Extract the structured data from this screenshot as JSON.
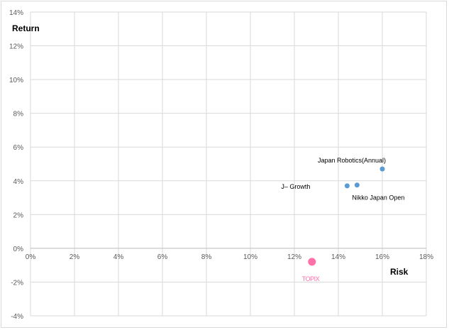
{
  "chart_data": {
    "type": "scatter",
    "xlabel": "Risk",
    "ylabel": "Return",
    "xlim": [
      0,
      18
    ],
    "ylim": [
      -4,
      14
    ],
    "x_ticks": [
      "0%",
      "2%",
      "4%",
      "6%",
      "8%",
      "10%",
      "12%",
      "14%",
      "16%",
      "18%"
    ],
    "y_ticks": [
      "-4%",
      "-2%",
      "0%",
      "2%",
      "4%",
      "6%",
      "8%",
      "10%",
      "12%",
      "14%"
    ],
    "grid": true,
    "points": [
      {
        "label": "Japan Robotics(Annual)",
        "x": 16.0,
        "y": 4.7,
        "color": "#5b9bd5"
      },
      {
        "label": "J– Growth",
        "x": 14.4,
        "y": 3.7,
        "color": "#5b9bd5"
      },
      {
        "label": "Nikko Japan Open",
        "x": 14.85,
        "y": 3.75,
        "color": "#5b9bd5"
      },
      {
        "label": "TOPIX",
        "x": 12.8,
        "y": -0.8,
        "color": "#ff6fa8"
      }
    ]
  }
}
